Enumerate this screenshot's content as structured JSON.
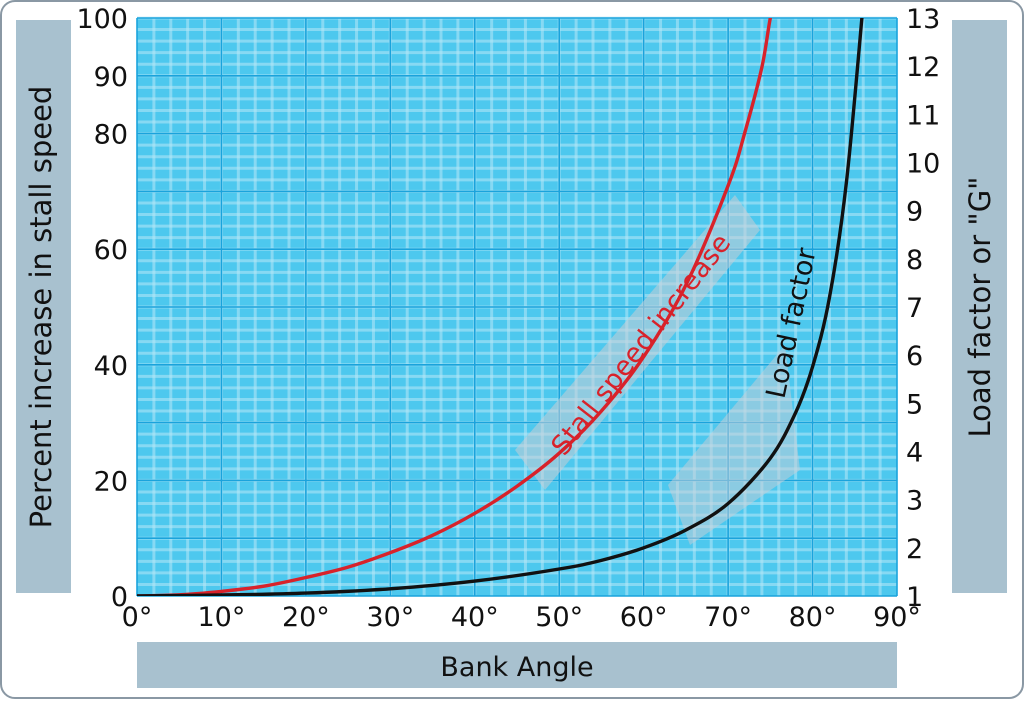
{
  "chart_data": {
    "type": "line",
    "xlabel": "Bank Angle",
    "ylabel": "Percent increase in stall speed",
    "y2label": "Load factor or \"G\"",
    "xlim": [
      0,
      90
    ],
    "ylim": [
      0,
      100
    ],
    "y2lim": [
      1,
      13
    ],
    "x_ticks": [
      0,
      10,
      20,
      30,
      40,
      50,
      60,
      70,
      80,
      90
    ],
    "x_tick_labels": [
      "0°",
      "10°",
      "20°",
      "30°",
      "40°",
      "50°",
      "60°",
      "70°",
      "80°",
      "90°"
    ],
    "y_ticks": [
      0,
      20,
      40,
      60,
      80,
      90,
      100
    ],
    "y_tick_labels": [
      "0",
      "20",
      "40",
      "60",
      "80",
      "90",
      "100"
    ],
    "y2_ticks": [
      1,
      2,
      3,
      4,
      5,
      6,
      7,
      8,
      9,
      10,
      11,
      12,
      13
    ],
    "y2_tick_labels": [
      "1",
      "2",
      "3",
      "4",
      "5",
      "6",
      "7",
      "8",
      "9",
      "10",
      "11",
      "12",
      "13"
    ],
    "grid": true,
    "series": [
      {
        "name": "Stall speed increase",
        "axis": "left",
        "color": "#d8222a",
        "x": [
          0,
          5,
          10,
          15,
          20,
          25,
          30,
          35,
          40,
          45,
          50,
          55,
          60,
          65,
          70,
          72,
          74,
          75,
          76
        ],
        "y": [
          0,
          0.2,
          0.8,
          1.7,
          3.2,
          5.0,
          7.5,
          10.5,
          14.3,
          19.0,
          24.7,
          32.0,
          41.4,
          53.8,
          71.0,
          80.3,
          91.5,
          100.0,
          106.5
        ]
      },
      {
        "name": "Load factor",
        "axis": "right",
        "color": "#111111",
        "x": [
          0,
          10,
          20,
          30,
          40,
          50,
          55,
          60,
          65,
          70,
          75,
          78,
          80,
          82,
          84,
          86
        ],
        "y": [
          1.0,
          1.02,
          1.06,
          1.15,
          1.31,
          1.56,
          1.74,
          2.0,
          2.37,
          2.92,
          3.86,
          4.81,
          5.76,
          7.19,
          9.57,
          13.3
        ]
      }
    ]
  }
}
